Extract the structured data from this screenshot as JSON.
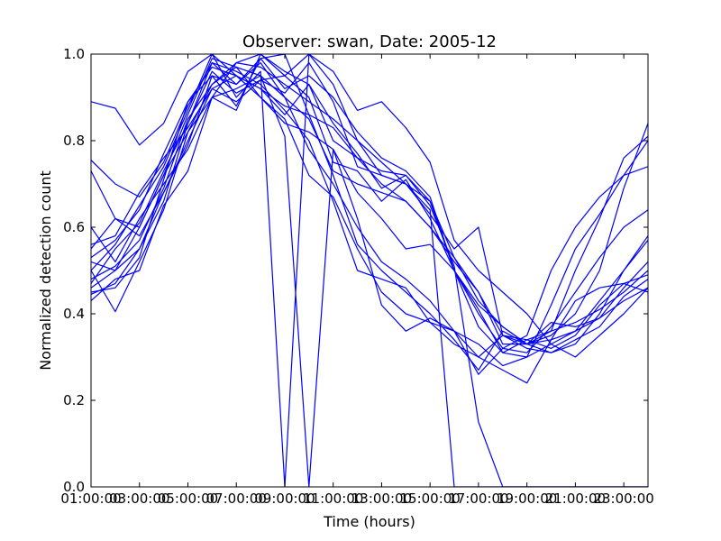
{
  "chart_data": {
    "type": "line",
    "title": "Observer: swan, Date: 2005-12",
    "xlabel": "Time (hours)",
    "ylabel": "Normalized detection count",
    "x_ticks": [
      "01:00:00",
      "03:00:00",
      "05:00:00",
      "07:00:00",
      "09:00:00",
      "11:00:00",
      "13:00:00",
      "15:00:00",
      "17:00:00",
      "19:00:00",
      "21:00:00",
      "23:00:00"
    ],
    "y_ticks": [
      "0.0",
      "0.2",
      "0.4",
      "0.6",
      "0.8",
      "1.0"
    ],
    "ylim": [
      0,
      1
    ],
    "xlim_hours": [
      1,
      24
    ],
    "grid": false,
    "series_color": "#0000ff",
    "x_hours": [
      1,
      2,
      3,
      4,
      5,
      6,
      7,
      8,
      9,
      10,
      11,
      12,
      13,
      14,
      15,
      16,
      17,
      18,
      19,
      20,
      21,
      22,
      23,
      24
    ],
    "series": [
      {
        "values": [
          0.89,
          0.875,
          0.79,
          0.84,
          0.96,
          1.0,
          0.95,
          0.92,
          0.88,
          0.86,
          0.83,
          0.76,
          0.7,
          0.66,
          0.6,
          0.53,
          0.43,
          0.37,
          0.33,
          0.35,
          0.4,
          0.5,
          0.69,
          0.84
        ]
      },
      {
        "values": [
          0.755,
          0.7,
          0.67,
          0.75,
          0.88,
          0.98,
          0.93,
          0.98,
          0.9,
          0.85,
          0.73,
          0.7,
          0.68,
          0.66,
          0.6,
          0.52,
          0.45,
          0.35,
          0.33,
          0.36,
          0.5,
          0.62,
          0.76,
          0.81
        ]
      },
      {
        "values": [
          0.73,
          0.62,
          0.6,
          0.72,
          0.82,
          0.93,
          0.97,
          0.95,
          0.9,
          0.78,
          0.7,
          0.6,
          0.52,
          0.48,
          0.43,
          0.36,
          0.33,
          0.28,
          0.3,
          0.42,
          0.55,
          0.63,
          0.72,
          0.8
        ]
      },
      {
        "values": [
          0.55,
          0.62,
          0.58,
          0.68,
          0.8,
          0.92,
          0.95,
          0.9,
          0.85,
          0.72,
          0.67,
          0.55,
          0.45,
          0.4,
          0.38,
          0.36,
          0.26,
          0.32,
          0.35,
          0.5,
          0.6,
          0.67,
          0.72,
          0.74
        ]
      },
      {
        "values": [
          0.6,
          0.52,
          0.62,
          0.7,
          0.78,
          0.9,
          0.98,
          1.0,
          0.96,
          0.93,
          0.8,
          0.76,
          0.73,
          0.72,
          0.66,
          0.5,
          0.4,
          0.32,
          0.31,
          0.37,
          0.45,
          0.53,
          0.6,
          0.64
        ]
      },
      {
        "values": [
          0.52,
          0.5,
          0.55,
          0.66,
          0.84,
          0.98,
          0.96,
          0.93,
          0.87,
          0.8,
          0.66,
          0.5,
          0.48,
          0.46,
          0.38,
          0.33,
          0.3,
          0.35,
          0.32,
          0.31,
          0.33,
          0.4,
          0.5,
          0.58
        ]
      },
      {
        "values": [
          0.5,
          0.405,
          0.52,
          0.64,
          0.82,
          0.9,
          0.92,
          0.95,
          0.81,
          0.0,
          0.78,
          0.68,
          0.62,
          0.55,
          0.56,
          0.5,
          0.37,
          0.31,
          0.3,
          0.33,
          0.36,
          0.43,
          0.5,
          0.57
        ]
      },
      {
        "values": [
          0.46,
          0.5,
          0.6,
          0.72,
          0.86,
          0.99,
          0.97,
          0.9,
          0.84,
          0.82,
          0.78,
          0.62,
          0.42,
          0.36,
          0.39,
          0.36,
          0.3,
          0.27,
          0.24,
          0.34,
          0.43,
          0.46,
          0.47,
          0.49
        ]
      },
      {
        "values": [
          0.445,
          0.47,
          0.55,
          0.68,
          0.79,
          0.95,
          0.93,
          0.99,
          1.0,
          0.86,
          0.72,
          0.56,
          0.5,
          0.45,
          0.4,
          0.34,
          0.27,
          0.36,
          0.33,
          0.38,
          0.37,
          0.39,
          0.46,
          0.52
        ]
      },
      {
        "values": [
          0.43,
          0.48,
          0.5,
          0.65,
          0.73,
          0.9,
          0.87,
          1.0,
          0.95,
          1.0,
          0.96,
          0.87,
          0.89,
          0.83,
          0.75,
          0.57,
          0.5,
          0.45,
          0.4,
          0.33,
          0.3,
          0.35,
          0.4,
          0.46
        ]
      },
      {
        "values": [
          0.48,
          0.51,
          0.57,
          0.69,
          0.85,
          0.93,
          0.98,
          0.97,
          0.93,
          0.89,
          0.85,
          0.8,
          0.72,
          0.7,
          0.63,
          0.55,
          0.6,
          0.35,
          0.34,
          0.32,
          0.35,
          0.42,
          0.47,
          0.45
        ]
      },
      {
        "values": [
          0.45,
          0.46,
          0.53,
          0.71,
          0.89,
          0.95,
          0.88,
          0.99,
          0.92,
          0.95,
          0.9,
          0.82,
          0.76,
          0.73,
          0.67,
          0.5,
          0.42,
          0.37,
          0.33,
          0.31,
          0.34,
          0.37,
          0.44,
          0.48
        ]
      },
      {
        "values": [
          0.5,
          0.56,
          0.65,
          0.74,
          0.87,
          1.0,
          0.9,
          0.96,
          0.0,
          1.0,
          0.93,
          0.8,
          0.75,
          0.7,
          0.66,
          0.53,
          0.45,
          0.33,
          0.33,
          0.34,
          0.36,
          0.39,
          0.43,
          0.46
        ]
      },
      {
        "values": [
          0.47,
          0.55,
          0.61,
          0.73,
          0.84,
          0.96,
          0.91,
          0.94,
          0.91,
          0.98,
          0.89,
          0.74,
          0.72,
          0.7,
          0.64,
          0.0,
          0.0,
          0.0,
          0.0,
          0.0,
          0.0,
          0.0,
          0.0,
          0.0
        ]
      },
      {
        "values": [
          0.53,
          0.57,
          0.64,
          0.77,
          0.89,
          0.97,
          0.95,
          0.92,
          0.86,
          0.93,
          0.84,
          0.77,
          0.69,
          0.72,
          0.65,
          0.51,
          0.15,
          0.0,
          0.0,
          0.0,
          0.0,
          0.0,
          0.0,
          0.0
        ]
      },
      {
        "values": [
          0.56,
          0.58,
          0.68,
          0.76,
          0.83,
          0.92,
          0.89,
          0.94,
          0.95,
          0.9,
          0.75,
          0.73,
          0.66,
          0.71,
          0.62,
          0.5,
          0.41,
          0.31,
          0.34,
          0.36,
          0.38,
          0.41,
          0.45,
          0.5
        ]
      }
    ]
  }
}
